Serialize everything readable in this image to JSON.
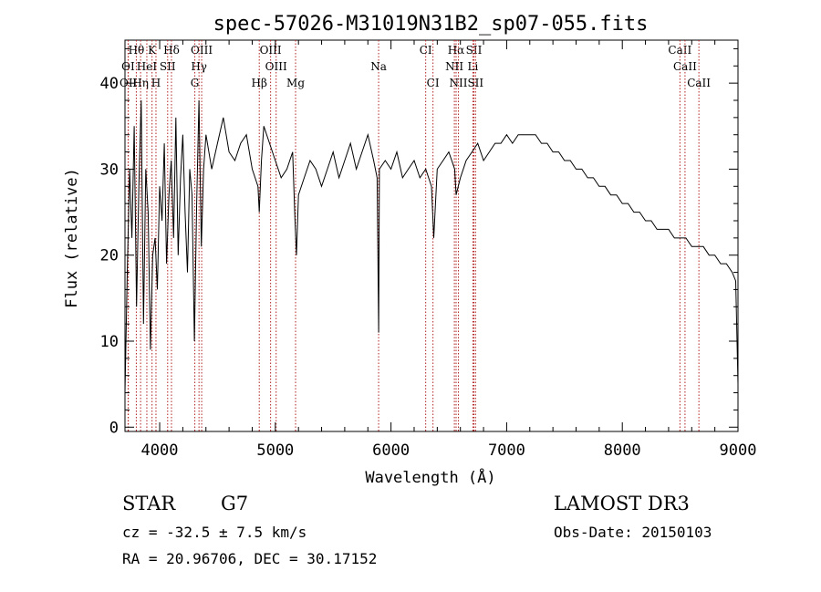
{
  "chart_data": {
    "type": "line",
    "title": "spec-57026-M31019N31B2_sp07-055.fits",
    "xlabel": "Wavelength (Å)",
    "ylabel": "Flux (relative)",
    "xlim": [
      3700,
      9000
    ],
    "ylim": [
      -0.5,
      45
    ],
    "xticks": [
      4000,
      5000,
      6000,
      7000,
      8000,
      9000
    ],
    "yticks": [
      0,
      10,
      20,
      30,
      40
    ],
    "grid": false,
    "series": [
      {
        "name": "flux",
        "x": [
          3700,
          3720,
          3740,
          3760,
          3780,
          3800,
          3820,
          3840,
          3860,
          3880,
          3900,
          3920,
          3940,
          3960,
          3980,
          4000,
          4020,
          4040,
          4060,
          4080,
          4100,
          4120,
          4140,
          4160,
          4180,
          4200,
          4220,
          4240,
          4260,
          4280,
          4300,
          4320,
          4340,
          4360,
          4380,
          4400,
          4450,
          4500,
          4550,
          4600,
          4650,
          4700,
          4750,
          4800,
          4850,
          4861,
          4880,
          4900,
          4950,
          5000,
          5050,
          5100,
          5150,
          5170,
          5183,
          5200,
          5250,
          5300,
          5350,
          5400,
          5450,
          5500,
          5550,
          5600,
          5650,
          5700,
          5750,
          5800,
          5850,
          5880,
          5893,
          5900,
          5950,
          6000,
          6050,
          6100,
          6150,
          6200,
          6250,
          6300,
          6350,
          6370,
          6400,
          6450,
          6500,
          6550,
          6563,
          6600,
          6650,
          6700,
          6750,
          6800,
          6850,
          6900,
          6950,
          7000,
          7050,
          7100,
          7150,
          7200,
          7250,
          7300,
          7350,
          7400,
          7450,
          7500,
          7550,
          7600,
          7650,
          7700,
          7750,
          7800,
          7850,
          7900,
          7950,
          8000,
          8050,
          8100,
          8150,
          8200,
          8250,
          8300,
          8350,
          8400,
          8450,
          8500,
          8550,
          8600,
          8650,
          8700,
          8750,
          8800,
          8850,
          8900,
          8950,
          8980,
          9000
        ],
        "y": [
          4,
          18,
          30,
          22,
          35,
          14,
          28,
          38,
          12,
          30,
          25,
          9,
          20,
          22,
          16,
          28,
          24,
          33,
          19,
          27,
          31,
          22,
          36,
          20,
          29,
          34,
          25,
          18,
          30,
          27,
          10,
          26,
          38,
          21,
          30,
          34,
          30,
          33,
          36,
          32,
          31,
          33,
          34,
          30,
          28,
          25,
          31,
          35,
          33,
          31,
          29,
          30,
          32,
          24,
          20,
          27,
          29,
          31,
          30,
          28,
          30,
          32,
          29,
          31,
          33,
          30,
          32,
          34,
          31,
          29,
          11,
          30,
          31,
          30,
          32,
          29,
          30,
          31,
          29,
          30,
          28,
          22,
          30,
          31,
          32,
          30,
          27,
          29,
          31,
          32,
          33,
          31,
          32,
          33,
          33,
          34,
          33,
          34,
          34,
          34,
          34,
          33,
          33,
          32,
          32,
          31,
          31,
          30,
          30,
          29,
          29,
          28,
          28,
          27,
          27,
          26,
          26,
          25,
          25,
          24,
          24,
          23,
          23,
          23,
          22,
          22,
          22,
          21,
          21,
          21,
          20,
          20,
          19,
          19,
          18,
          17,
          5
        ]
      }
    ],
    "line_color": "#000000",
    "marker_color": "#b22222",
    "lines": [
      {
        "label": "Hθ",
        "wl": 3798,
        "row": 0
      },
      {
        "label": "K",
        "wl": 3934,
        "row": 0
      },
      {
        "label": "Hδ",
        "wl": 4102,
        "row": 0
      },
      {
        "label": "OIII",
        "wl": 4363,
        "row": 0
      },
      {
        "label": "OIII",
        "wl": 4959,
        "row": 0
      },
      {
        "label": "CI",
        "wl": 6300,
        "row": 0
      },
      {
        "label": "Hα",
        "wl": 6563,
        "row": 0
      },
      {
        "label": "SII",
        "wl": 6717,
        "row": 0
      },
      {
        "label": "CaII",
        "wl": 8498,
        "row": 0
      },
      {
        "label": "OI",
        "wl": 3727,
        "row": 1
      },
      {
        "label": "HeI",
        "wl": 3889,
        "row": 1
      },
      {
        "label": "SII",
        "wl": 4069,
        "row": 1
      },
      {
        "label": "Hγ",
        "wl": 4340,
        "row": 1
      },
      {
        "label": "OIII",
        "wl": 5007,
        "row": 1
      },
      {
        "label": "Na",
        "wl": 5893,
        "row": 1
      },
      {
        "label": "NII",
        "wl": 6548,
        "row": 1
      },
      {
        "label": "Li",
        "wl": 6708,
        "row": 1
      },
      {
        "label": "CaII",
        "wl": 8542,
        "row": 1
      },
      {
        "label": "OII",
        "wl": 3729,
        "row": 2
      },
      {
        "label": "Hη",
        "wl": 3835,
        "row": 2
      },
      {
        "label": "H",
        "wl": 3968,
        "row": 2
      },
      {
        "label": "G",
        "wl": 4304,
        "row": 2
      },
      {
        "label": "Hβ",
        "wl": 4861,
        "row": 2
      },
      {
        "label": "Mg",
        "wl": 5175,
        "row": 2
      },
      {
        "label": "CI",
        "wl": 6363,
        "row": 2
      },
      {
        "label": "NII",
        "wl": 6583,
        "row": 2
      },
      {
        "label": "SII",
        "wl": 6731,
        "row": 2
      },
      {
        "label": "CaII",
        "wl": 8662,
        "row": 2
      }
    ]
  },
  "info": {
    "obj_class": "STAR",
    "subclass": "G7",
    "cz": "cz = -32.5 ± 7.5 km/s",
    "radec": "RA =  20.96706, DEC =  30.17152",
    "survey": "LAMOST DR3",
    "obs_date": "Obs-Date: 20150103"
  }
}
